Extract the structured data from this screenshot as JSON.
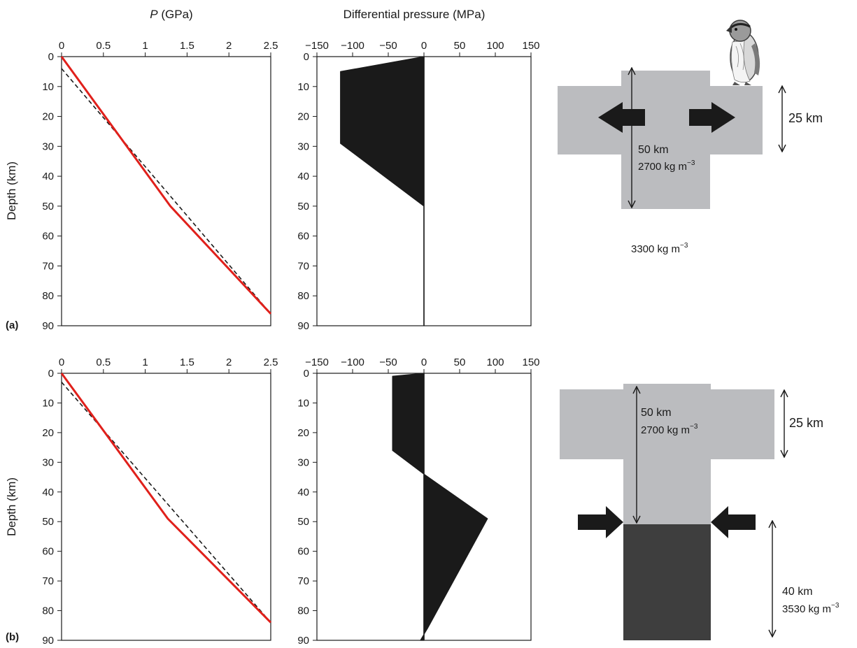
{
  "colors": {
    "pressure_line": "#e0201b",
    "reference_line": "#1a1a1a",
    "fill": "#1a1a1a",
    "light_crust": "#bbbcbf",
    "dense_root": "#3e3e3e",
    "arrow": "#1a1a1a"
  },
  "shared": {
    "pressure_xlabel_prefix": "P",
    "pressure_xlabel_suffix": " (GPa)",
    "diff_xlabel": "Differential pressure (MPa)",
    "ylabel": "Depth (km)",
    "depth_ticks": [
      "0",
      "10",
      "20",
      "30",
      "40",
      "50",
      "60",
      "70",
      "80",
      "90"
    ],
    "pressure_ticks": [
      "0",
      "0.5",
      "1",
      "1.5",
      "2",
      "2.5"
    ],
    "diff_ticks": [
      "−150",
      "−100",
      "−50",
      "0",
      "50",
      "100",
      "150"
    ]
  },
  "chart_data": [
    {
      "panel": "(a)",
      "type": "line",
      "xlabel": "P (GPa)",
      "ylabel": "Depth (km)",
      "xlim": [
        0,
        2.5
      ],
      "ylim": [
        0,
        90
      ],
      "y_inverted": true,
      "series": [
        {
          "style": "solid",
          "color": "#e0201b",
          "depth": [
            0,
            50,
            86
          ],
          "pressure": [
            0,
            1.3,
            2.5
          ]
        },
        {
          "style": "dashed",
          "color": "#1a1a1a",
          "depth": [
            4,
            86
          ],
          "pressure": [
            0,
            2.5
          ]
        }
      ]
    },
    {
      "panel": "(a)",
      "type": "area",
      "xlabel": "Differential pressure (MPa)",
      "ylabel": "Depth (km)",
      "xlim": [
        -150,
        150
      ],
      "ylim": [
        0,
        90
      ],
      "y_inverted": true,
      "profile": {
        "depth": [
          0,
          5,
          29,
          50,
          90
        ],
        "differential_pressure": [
          0,
          -117,
          -117,
          0,
          0
        ]
      }
    },
    {
      "panel": "(b)",
      "type": "line",
      "xlabel": "P (GPa)",
      "ylabel": "Depth (km)",
      "xlim": [
        0,
        2.5
      ],
      "ylim": [
        0,
        90
      ],
      "y_inverted": true,
      "series": [
        {
          "style": "solid",
          "color": "#e0201b",
          "depth": [
            0,
            49,
            84
          ],
          "pressure": [
            0,
            1.27,
            2.5
          ]
        },
        {
          "style": "dashed",
          "color": "#1a1a1a",
          "depth": [
            3,
            84
          ],
          "pressure": [
            0,
            2.5
          ]
        }
      ]
    },
    {
      "panel": "(b)",
      "type": "area",
      "xlabel": "Differential pressure (MPa)",
      "ylabel": "Depth (km)",
      "xlim": [
        -150,
        150
      ],
      "ylim": [
        0,
        90
      ],
      "y_inverted": true,
      "profile": {
        "depth": [
          0,
          1,
          26,
          34,
          49,
          86,
          88,
          90
        ],
        "differential_pressure": [
          0,
          -44,
          -44,
          0,
          89,
          5,
          0,
          -5
        ]
      }
    }
  ],
  "diagram_a": {
    "thickness_label": "50 km",
    "crust_density_label": "2700 kg m",
    "crust_density_exp": "−3",
    "elevation_label": "25 km",
    "mantle_density_label": "3300 kg m",
    "mantle_density_exp": "−3",
    "arrows": "outward",
    "penguin_icon": "penguin-icon"
  },
  "diagram_b": {
    "thickness_label": "50 km",
    "crust_density_label": "2700 kg m",
    "crust_density_exp": "−3",
    "elevation_label": "25 km",
    "root_thickness_label": "40 km",
    "root_density_label": "3530 kg m",
    "root_density_exp": "−3",
    "arrows": "inward"
  }
}
